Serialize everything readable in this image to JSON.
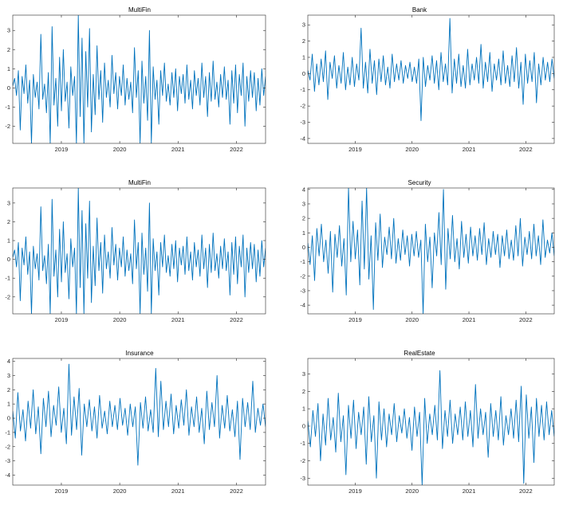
{
  "figure": {
    "background": "#ffffff",
    "line_color": "#0072bd",
    "axis_color": "#262626"
  },
  "chart_data": [
    {
      "type": "line",
      "title": "MultiFin",
      "xlabel": "",
      "ylabel": "",
      "xlim": [
        "2018-03",
        "2022-07"
      ],
      "ylim": [
        -2.9,
        3.8
      ],
      "yticks": [
        -2,
        -1,
        0,
        1,
        2,
        3
      ],
      "xticks": [
        "2019",
        "2020",
        "2021",
        "2022"
      ],
      "series": [
        {
          "x_start": "2018-03",
          "x_end": "2022-07",
          "values": [
            0.1,
            0.5,
            -0.4,
            0.9,
            -2.2,
            0.6,
            -0.3,
            1.2,
            -0.8,
            0.4,
            -2.9,
            0.7,
            -0.5,
            0.3,
            -1.1,
            2.8,
            -0.6,
            0.2,
            -1.3,
            0.8,
            -2.9,
            3.2,
            -0.9,
            0.5,
            -2.0,
            1.6,
            -1.2,
            2.0,
            -0.7,
            0.3,
            -2.1,
            1.1,
            -0.4,
            0.6,
            -2.9,
            3.8,
            -1.5,
            2.6,
            -2.9,
            1.9,
            -1.0,
            3.1,
            -2.3,
            0.7,
            -1.4,
            2.2,
            -0.6,
            0.9,
            -1.8,
            1.3,
            -0.5,
            0.4,
            -1.0,
            1.7,
            -0.3,
            0.8,
            -1.1,
            0.6,
            -0.4,
            1.2,
            -0.9,
            0.5,
            -0.6,
            0.3,
            -1.3,
            2.1,
            -0.5,
            0.9,
            -2.9,
            1.4,
            -0.8,
            0.6,
            -1.7,
            3.0,
            -2.9,
            1.1,
            -0.6,
            0.4,
            -1.9,
            0.9,
            -0.4,
            1.3,
            -0.7,
            0.2,
            -0.9,
            0.8,
            -0.5,
            1.0,
            -1.2,
            0.6,
            -0.3,
            0.7,
            -0.8,
            1.2,
            -0.6,
            0.4,
            -1.1,
            0.9,
            -0.4,
            0.5,
            -0.9,
            1.3,
            -0.5,
            0.6,
            -1.5,
            0.8,
            -0.7,
            1.4,
            -0.6,
            0.3,
            -1.0,
            0.7,
            -0.5,
            1.1,
            -0.6,
            0.4,
            -1.9,
            0.9,
            -0.8,
            1.2,
            -1.3,
            0.7,
            -0.4,
            1.3,
            -2.0,
            0.6,
            -0.7,
            0.9,
            -0.5,
            0.8,
            -1.2,
            0.5,
            -0.9,
            1.0,
            -0.4,
            0.6
          ]
        }
      ]
    },
    {
      "type": "line",
      "title": "Bank",
      "xlabel": "",
      "ylabel": "",
      "xlim": [
        "2018-03",
        "2022-07"
      ],
      "ylim": [
        -4.3,
        3.6
      ],
      "yticks": [
        -4,
        -3,
        -2,
        -1,
        0,
        1,
        2,
        3
      ],
      "xticks": [
        "2019",
        "2020",
        "2021",
        "2022"
      ],
      "series": [
        {
          "x_start": "2018-03",
          "x_end": "2022-07",
          "values": [
            0.2,
            -0.4,
            1.2,
            -1.1,
            0.6,
            -0.7,
            0.9,
            -0.5,
            1.4,
            -1.6,
            0.7,
            -0.3,
            1.1,
            -0.9,
            0.5,
            -0.6,
            1.3,
            -1.0,
            0.4,
            -0.7,
            1.0,
            -0.8,
            0.6,
            -0.4,
            2.8,
            -0.9,
            0.7,
            -1.2,
            1.5,
            -0.6,
            0.8,
            -1.3,
            0.9,
            -0.5,
            1.1,
            -0.7,
            0.4,
            -0.9,
            1.2,
            -0.5,
            0.6,
            -0.4,
            0.8,
            -0.6,
            0.5,
            -0.3,
            0.7,
            -0.5,
            0.4,
            -0.6,
            0.9,
            -2.9,
            1.0,
            -0.8,
            0.5,
            -0.4,
            1.1,
            -0.6,
            0.8,
            -1.0,
            1.3,
            -0.5,
            0.6,
            -0.7,
            3.4,
            -1.2,
            0.9,
            -0.6,
            1.2,
            -0.8,
            0.5,
            -0.9,
            1.5,
            -0.7,
            0.6,
            -0.4,
            1.0,
            -0.6,
            1.8,
            -0.9,
            0.7,
            -0.5,
            1.3,
            -1.1,
            0.6,
            -0.4,
            0.9,
            -0.7,
            1.4,
            -0.6,
            0.5,
            -0.8,
            1.1,
            -0.5,
            1.6,
            -0.9,
            0.7,
            -1.9,
            1.2,
            -0.6,
            0.8,
            -0.5,
            1.3,
            -1.8,
            0.6,
            -0.7,
            1.0,
            -0.4,
            0.7,
            -0.5,
            0.9,
            -0.3
          ]
        }
      ]
    },
    {
      "type": "line",
      "title": "MultiFin",
      "xlabel": "",
      "ylabel": "",
      "xlim": [
        "2018-03",
        "2022-07"
      ],
      "ylim": [
        -2.9,
        3.8
      ],
      "yticks": [
        -2,
        -1,
        0,
        1,
        2,
        3
      ],
      "xticks": [
        "2019",
        "2020",
        "2021",
        "2022"
      ],
      "series": [
        {
          "x_start": "2018-03",
          "x_end": "2022-07",
          "values": [
            0.1,
            0.5,
            -0.4,
            0.9,
            -2.2,
            0.6,
            -0.3,
            1.2,
            -0.8,
            0.4,
            -2.9,
            0.7,
            -0.5,
            0.3,
            -1.1,
            2.8,
            -0.6,
            0.2,
            -1.3,
            0.8,
            -2.9,
            3.2,
            -0.9,
            0.5,
            -2.0,
            1.6,
            -1.2,
            2.0,
            -0.7,
            0.3,
            -2.1,
            1.1,
            -0.4,
            0.6,
            -2.9,
            3.8,
            -1.5,
            2.6,
            -2.9,
            1.9,
            -1.0,
            3.1,
            -2.3,
            0.7,
            -1.4,
            2.2,
            -0.6,
            0.9,
            -1.8,
            1.3,
            -0.5,
            0.4,
            -1.0,
            1.7,
            -0.3,
            0.8,
            -1.1,
            0.6,
            -0.4,
            1.2,
            -0.9,
            0.5,
            -0.6,
            0.3,
            -1.3,
            2.1,
            -0.5,
            0.9,
            -2.9,
            1.4,
            -0.8,
            0.6,
            -1.7,
            3.0,
            -2.9,
            1.1,
            -0.6,
            0.4,
            -1.9,
            0.9,
            -0.4,
            1.3,
            -0.7,
            0.2,
            -0.9,
            0.8,
            -0.5,
            1.0,
            -1.2,
            0.6,
            -0.3,
            0.7,
            -0.8,
            1.2,
            -0.6,
            0.4,
            -1.1,
            0.9,
            -0.4,
            0.5,
            -0.9,
            1.3,
            -0.5,
            0.6,
            -1.5,
            0.8,
            -0.7,
            1.4,
            -0.6,
            0.3,
            -1.0,
            0.7,
            -0.5,
            1.1,
            -0.6,
            0.4,
            -1.9,
            0.9,
            -0.8,
            1.2,
            -1.3,
            0.7,
            -0.4,
            1.3,
            -2.0,
            0.6,
            -0.7,
            0.9,
            -0.5,
            0.8,
            -1.2,
            0.5,
            -0.9,
            1.0,
            -0.4,
            0.6
          ]
        }
      ]
    },
    {
      "type": "line",
      "title": "Security",
      "xlabel": "",
      "ylabel": "",
      "xlim": [
        "2018-03",
        "2022-07"
      ],
      "ylim": [
        -4.6,
        4.1
      ],
      "yticks": [
        -4,
        -3,
        -2,
        -1,
        0,
        1,
        2,
        3,
        4
      ],
      "xticks": [
        "2019",
        "2020",
        "2021",
        "2022"
      ],
      "series": [
        {
          "x_start": "2018-03",
          "x_end": "2022-07",
          "values": [
            0.3,
            -1.2,
            0.8,
            -2.3,
            1.3,
            -0.6,
            1.6,
            -1.0,
            0.5,
            -1.8,
            1.1,
            -3.1,
            0.9,
            -0.7,
            1.5,
            -1.3,
            0.6,
            -3.3,
            4.1,
            -1.0,
            1.8,
            -0.8,
            1.2,
            -2.6,
            3.2,
            -1.5,
            4.1,
            -2.2,
            0.8,
            -4.3,
            1.7,
            -0.9,
            2.3,
            -1.4,
            0.7,
            -0.5,
            1.4,
            -0.8,
            2.0,
            -1.1,
            0.6,
            -0.9,
            1.2,
            -0.5,
            0.8,
            -1.3,
            0.9,
            -0.6,
            1.1,
            -0.7,
            0.5,
            -4.6,
            1.6,
            -1.0,
            0.7,
            -2.8,
            1.0,
            -0.6,
            2.4,
            -1.2,
            4.0,
            -2.9,
            1.3,
            -0.8,
            2.2,
            -1.0,
            0.6,
            -1.5,
            1.8,
            -0.7,
            0.9,
            -1.1,
            1.4,
            -0.6,
            0.8,
            -0.9,
            1.3,
            -0.5,
            1.7,
            -1.2,
            0.6,
            -0.7,
            1.1,
            -0.5,
            0.9,
            -1.4,
            0.8,
            -0.6,
            1.2,
            -0.8,
            0.5,
            -0.9,
            1.5,
            -0.6,
            2.0,
            -1.3,
            0.7,
            -0.5,
            1.1,
            -0.8,
            1.6,
            -0.6,
            0.8,
            -1.2,
            1.9,
            -0.7,
            0.5,
            -0.4,
            1.0,
            -0.6
          ]
        }
      ]
    },
    {
      "type": "line",
      "title": "Insurance",
      "xlabel": "",
      "ylabel": "",
      "xlim": [
        "2018-03",
        "2022-07"
      ],
      "ylim": [
        -4.7,
        4.2
      ],
      "yticks": [
        -4,
        -3,
        -2,
        -1,
        0,
        1,
        2,
        3,
        4
      ],
      "xticks": [
        "2019",
        "2020",
        "2021",
        "2022"
      ],
      "series": [
        {
          "x_start": "2018-03",
          "x_end": "2022-07",
          "values": [
            0.5,
            -1.4,
            1.8,
            -0.9,
            0.6,
            -1.6,
            1.2,
            -0.7,
            2.0,
            -1.1,
            0.8,
            -2.5,
            1.4,
            -0.6,
            1.9,
            -1.3,
            0.9,
            -0.5,
            2.2,
            -1.0,
            0.7,
            -1.8,
            3.8,
            -1.2,
            1.5,
            -0.8,
            2.1,
            -2.6,
            1.0,
            -0.6,
            1.3,
            -0.9,
            0.8,
            -1.4,
            1.6,
            -0.7,
            0.5,
            -1.1,
            1.2,
            -0.6,
            0.9,
            -0.8,
            1.4,
            -0.5,
            0.7,
            -1.2,
            1.0,
            -0.6,
            0.8,
            -3.3,
            1.1,
            -0.7,
            1.5,
            -0.9,
            0.6,
            -1.0,
            3.5,
            -1.3,
            2.6,
            -0.8,
            1.2,
            -0.6,
            1.7,
            -1.1,
            0.9,
            -0.7,
            1.3,
            -0.5,
            2.0,
            -1.2,
            0.8,
            -0.6,
            1.5,
            -1.0,
            0.7,
            -1.8,
            1.9,
            -0.8,
            1.1,
            -0.6,
            3.0,
            -1.4,
            0.9,
            -0.7,
            1.6,
            -0.9,
            0.6,
            -1.3,
            1.2,
            -2.9,
            1.4,
            -0.6,
            1.1,
            -0.8,
            2.6,
            -1.0,
            0.7,
            -0.5,
            1.0,
            -0.6
          ]
        }
      ]
    },
    {
      "type": "line",
      "title": "RealEstate",
      "xlabel": "",
      "ylabel": "",
      "xlim": [
        "2018-03",
        "2022-07"
      ],
      "ylim": [
        -3.4,
        3.9
      ],
      "yticks": [
        -3,
        -2,
        -1,
        0,
        1,
        2,
        3
      ],
      "xticks": [
        "2019",
        "2020",
        "2021",
        "2022"
      ],
      "series": [
        {
          "x_start": "2018-03",
          "x_end": "2022-07",
          "values": [
            0.3,
            -1.2,
            0.9,
            -0.6,
            1.3,
            -2.0,
            0.7,
            -1.1,
            1.6,
            -0.8,
            0.5,
            -1.5,
            1.9,
            -0.9,
            0.6,
            -2.8,
            1.2,
            -0.7,
            1.5,
            -1.3,
            0.8,
            -0.5,
            1.1,
            -2.2,
            1.7,
            -0.9,
            0.6,
            -3.0,
            1.4,
            -0.8,
            1.0,
            -1.2,
            0.7,
            -0.5,
            1.3,
            -0.9,
            0.6,
            -0.4,
            1.0,
            -0.7,
            0.5,
            -1.4,
            1.1,
            -0.6,
            0.8,
            -3.4,
            1.6,
            -1.0,
            0.7,
            -0.5,
            1.2,
            -0.8,
            3.2,
            -1.3,
            0.9,
            -0.6,
            1.5,
            -1.0,
            0.7,
            -0.5,
            1.1,
            -0.8,
            1.4,
            -0.6,
            0.9,
            -1.2,
            2.4,
            -0.7,
            1.0,
            -0.5,
            0.8,
            -1.8,
            1.3,
            -0.6,
            0.9,
            -0.8,
            1.7,
            -1.1,
            0.6,
            -0.5,
            1.0,
            -0.7,
            1.5,
            -0.9,
            2.3,
            -3.3,
            1.8,
            -0.7,
            1.1,
            -2.1,
            1.6,
            -0.6,
            1.2,
            -0.8,
            1.4,
            -0.5,
            0.9,
            -0.6
          ]
        }
      ]
    }
  ]
}
